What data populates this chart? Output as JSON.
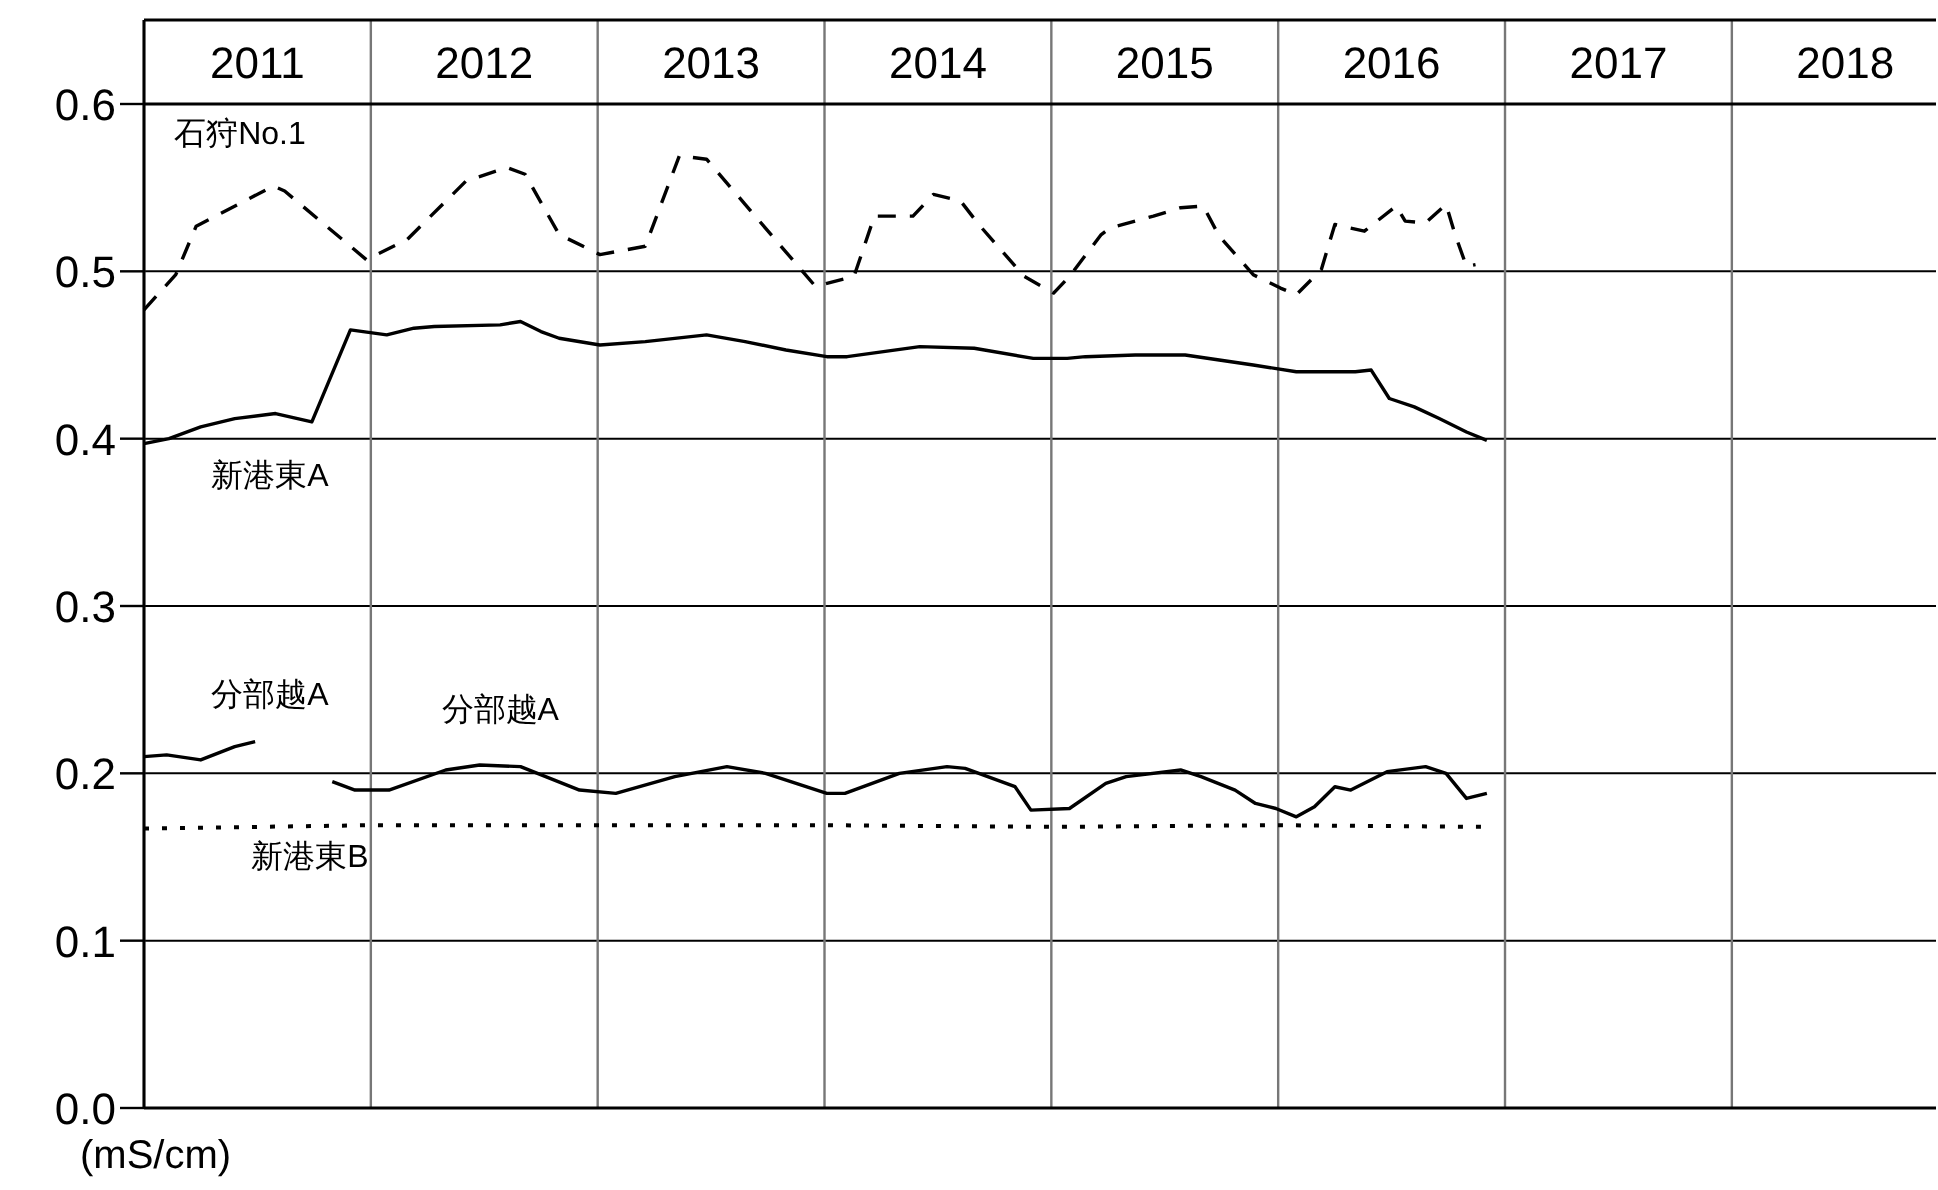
{
  "chart_data": {
    "type": "line",
    "ylabel": "(mS/cm)",
    "xlim": [
      2011,
      2018.9
    ],
    "xticks": [
      {
        "value": 2011.5,
        "label": "2011"
      },
      {
        "value": 2012.5,
        "label": "2012"
      },
      {
        "value": 2013.5,
        "label": "2013"
      },
      {
        "value": 2014.5,
        "label": "2014"
      },
      {
        "value": 2015.5,
        "label": "2015"
      },
      {
        "value": 2016.5,
        "label": "2016"
      },
      {
        "value": 2017.5,
        "label": "2017"
      },
      {
        "value": 2018.5,
        "label": "2018"
      }
    ],
    "ylim": [
      0,
      0.6
    ],
    "yticks": [
      {
        "value": 0,
        "label": "0.0"
      },
      {
        "value": 0.1,
        "label": "0.1"
      },
      {
        "value": 0.2,
        "label": "0.2"
      },
      {
        "value": 0.3,
        "label": "0.3"
      },
      {
        "value": 0.4,
        "label": "0.4"
      },
      {
        "value": 0.5,
        "label": "0.5"
      },
      {
        "value": 0.6,
        "label": "0.6"
      }
    ],
    "grid": true,
    "marker": "none",
    "series": [
      {
        "name": "石狩No.1",
        "color": "#000000",
        "line_style": "dashed",
        "x": [
          2011.0,
          2011.14,
          2011.23,
          2011.57,
          2011.62,
          2011.98,
          2012.16,
          2012.42,
          2012.6,
          2012.68,
          2012.83,
          2013.01,
          2013.21,
          2013.36,
          2013.48,
          2013.65,
          2013.96,
          2014.13,
          2014.22,
          2014.39,
          2014.48,
          2014.6,
          2014.68,
          2014.88,
          2015.01,
          2015.08,
          2015.22,
          2015.26,
          2015.45,
          2015.57,
          2015.67,
          2015.74,
          2015.89,
          2016.01,
          2016.08,
          2016.19,
          2016.25,
          2016.38,
          2016.52,
          2016.56,
          2016.65,
          2016.74,
          2016.78,
          2016.83,
          2016.87
        ],
        "values": [
          0.477,
          0.498,
          0.527,
          0.551,
          0.548,
          0.507,
          0.519,
          0.554,
          0.562,
          0.558,
          0.522,
          0.51,
          0.515,
          0.569,
          0.567,
          0.54,
          0.491,
          0.497,
          0.533,
          0.533,
          0.546,
          0.542,
          0.528,
          0.497,
          0.487,
          0.497,
          0.522,
          0.526,
          0.533,
          0.538,
          0.539,
          0.521,
          0.498,
          0.49,
          0.486,
          0.501,
          0.528,
          0.524,
          0.539,
          0.53,
          0.529,
          0.54,
          0.522,
          0.503,
          0.504
        ]
      },
      {
        "name": "新港東A",
        "color": "#000000",
        "line_style": "solid",
        "x": [
          2011.0,
          2011.11,
          2011.25,
          2011.4,
          2011.58,
          2011.74,
          2011.91,
          2012.07,
          2012.19,
          2012.28,
          2012.57,
          2012.66,
          2012.75,
          2012.83,
          2013.01,
          2013.21,
          2013.48,
          2013.65,
          2013.83,
          2014.01,
          2014.1,
          2014.42,
          2014.66,
          2014.92,
          2015.07,
          2015.15,
          2015.37,
          2015.59,
          2015.74,
          2015.89,
          2016.08,
          2016.34,
          2016.41,
          2016.49,
          2016.6,
          2016.71,
          2016.83,
          2016.92
        ],
        "values": [
          0.397,
          0.4,
          0.407,
          0.412,
          0.415,
          0.41,
          0.465,
          0.462,
          0.466,
          0.467,
          0.468,
          0.47,
          0.464,
          0.46,
          0.456,
          0.458,
          0.462,
          0.458,
          0.453,
          0.449,
          0.449,
          0.455,
          0.454,
          0.448,
          0.448,
          0.449,
          0.45,
          0.45,
          0.447,
          0.444,
          0.44,
          0.44,
          0.441,
          0.424,
          0.419,
          0.412,
          0.404,
          0.399
        ]
      },
      {
        "name": "分部越A",
        "color": "#000000",
        "line_style": "solid",
        "x": [
          2011.0,
          2011.1,
          2011.25,
          2011.4,
          2011.49
        ],
        "values": [
          0.21,
          0.211,
          0.208,
          0.216,
          0.219
        ]
      },
      {
        "name": "分部越A",
        "color": "#000000",
        "line_style": "solid",
        "x": [
          2011.83,
          2011.93,
          2012.08,
          2012.33,
          2012.48,
          2012.66,
          2012.92,
          2013.08,
          2013.34,
          2013.57,
          2013.74,
          2014.01,
          2014.09,
          2014.33,
          2014.54,
          2014.62,
          2014.84,
          2014.91,
          2015.08,
          2015.24,
          2015.33,
          2015.57,
          2015.66,
          2015.81,
          2015.9,
          2015.99,
          2016.08,
          2016.16,
          2016.25,
          2016.32,
          2016.48,
          2016.65,
          2016.74,
          2016.83,
          2016.92
        ],
        "values": [
          0.195,
          0.19,
          0.19,
          0.202,
          0.205,
          0.204,
          0.19,
          0.188,
          0.198,
          0.204,
          0.2,
          0.188,
          0.188,
          0.2,
          0.204,
          0.203,
          0.192,
          0.178,
          0.179,
          0.194,
          0.198,
          0.202,
          0.198,
          0.19,
          0.182,
          0.179,
          0.174,
          0.18,
          0.192,
          0.19,
          0.201,
          0.204,
          0.2,
          0.185,
          0.188
        ]
      },
      {
        "name": "新港東B",
        "color": "#000000",
        "line_style": "dotted",
        "x": [
          2011.0,
          2012.0,
          2013.0,
          2014.0,
          2015.0,
          2016.0,
          2016.92
        ],
        "values": [
          0.167,
          0.169,
          0.169,
          0.169,
          0.168,
          0.169,
          0.168
        ]
      }
    ]
  }
}
